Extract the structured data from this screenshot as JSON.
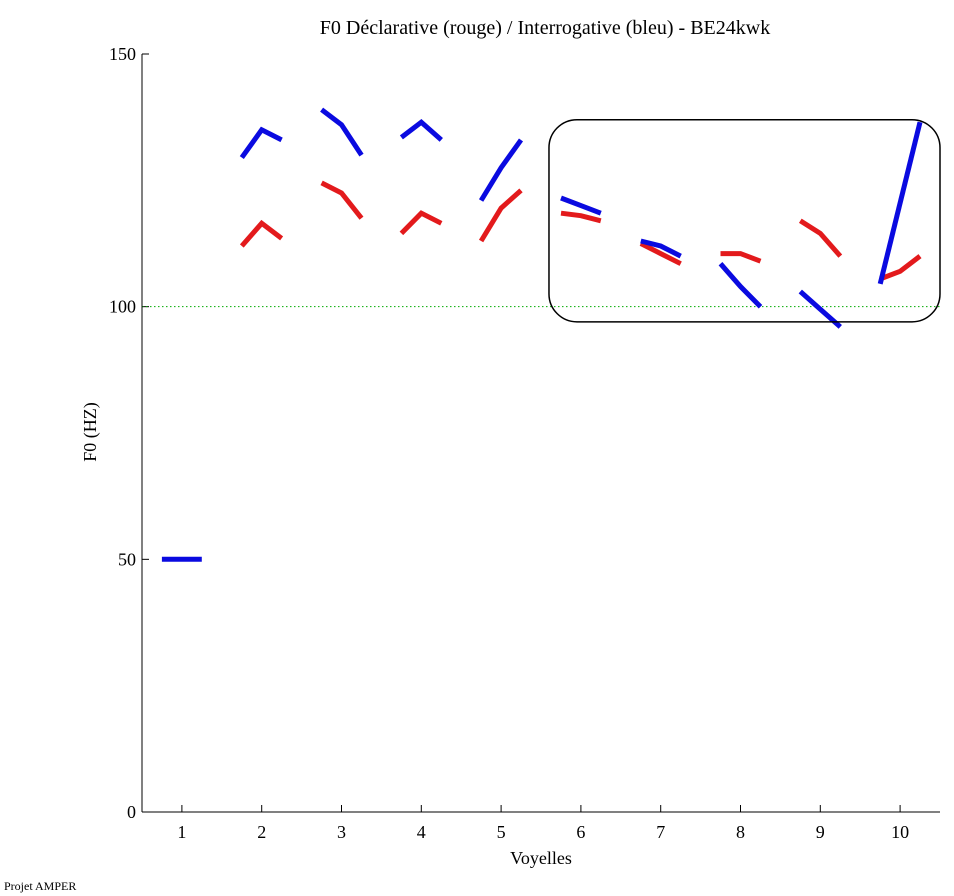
{
  "chart_data": {
    "type": "line",
    "title": "F0 Déclarative (rouge) / Interrogative (bleu) - BE24kwk",
    "xlabel": "Voyelles",
    "ylabel": "F0 (HZ)",
    "xlim": [
      0.5,
      10.5
    ],
    "ylim": [
      0,
      150
    ],
    "x_ticks": [
      1,
      2,
      3,
      4,
      5,
      6,
      7,
      8,
      9,
      10
    ],
    "y_ticks": [
      0,
      50,
      100,
      150
    ],
    "reference_line": {
      "y": 100,
      "color": "#00aa00",
      "style": "dotted"
    },
    "highlight_box": {
      "x_range": [
        5.6,
        10.5
      ],
      "y_range": [
        97,
        137
      ]
    },
    "series": [
      {
        "color": "#e31a1c",
        "segments": [
          {
            "vowel": 2,
            "x": [
              1.75,
              2.0,
              2.25
            ],
            "y": [
              112,
              116.5,
              113.5
            ]
          },
          {
            "vowel": 3,
            "x": [
              2.75,
              3.0,
              3.25
            ],
            "y": [
              124.5,
              122.5,
              117.5
            ]
          },
          {
            "vowel": 4,
            "x": [
              3.75,
              4.0,
              4.25
            ],
            "y": [
              114.5,
              118.5,
              116.5
            ]
          },
          {
            "vowel": 5,
            "x": [
              4.75,
              5.0,
              5.25
            ],
            "y": [
              113,
              119.5,
              123
            ]
          },
          {
            "vowel": 6,
            "x": [
              5.75,
              6.0,
              6.25
            ],
            "y": [
              118.5,
              118,
              117
            ]
          },
          {
            "vowel": 7,
            "x": [
              6.75,
              7.0,
              7.25
            ],
            "y": [
              112.5,
              110.5,
              108.5
            ]
          },
          {
            "vowel": 8,
            "x": [
              7.75,
              8.0,
              8.25
            ],
            "y": [
              110.5,
              110.5,
              109
            ]
          },
          {
            "vowel": 9,
            "x": [
              8.75,
              9.0,
              9.25
            ],
            "y": [
              117,
              114.5,
              110
            ]
          },
          {
            "vowel": 10,
            "x": [
              9.75,
              10.0,
              10.25
            ],
            "y": [
              105.5,
              107,
              110
            ]
          }
        ]
      },
      {
        "color": "#0a0ae0",
        "segments": [
          {
            "vowel": 1,
            "x": [
              0.75,
              1.25
            ],
            "y": [
              50,
              50
            ]
          },
          {
            "vowel": 2,
            "x": [
              1.75,
              2.0,
              2.25
            ],
            "y": [
              129.5,
              135,
              133
            ]
          },
          {
            "vowel": 3,
            "x": [
              2.75,
              3.0,
              3.25
            ],
            "y": [
              139,
              136,
              130
            ]
          },
          {
            "vowel": 4,
            "x": [
              3.75,
              4.0,
              4.25
            ],
            "y": [
              133.5,
              136.5,
              133
            ]
          },
          {
            "vowel": 5,
            "x": [
              4.75,
              5.0,
              5.25
            ],
            "y": [
              121,
              127.5,
              133
            ]
          },
          {
            "vowel": 6,
            "x": [
              5.75,
              6.0,
              6.25
            ],
            "y": [
              121.5,
              120,
              118.5
            ]
          },
          {
            "vowel": 7,
            "x": [
              6.75,
              7.0,
              7.25
            ],
            "y": [
              113,
              112,
              110
            ]
          },
          {
            "vowel": 8,
            "x": [
              7.75,
              8.0,
              8.25
            ],
            "y": [
              108.5,
              104,
              100
            ]
          },
          {
            "vowel": 9,
            "x": [
              8.75,
              9.0,
              9.25
            ],
            "y": [
              103,
              99.5,
              96
            ]
          },
          {
            "vowel": 10,
            "x": [
              9.75,
              10.25
            ],
            "y": [
              104.5,
              136.5
            ]
          }
        ]
      }
    ]
  },
  "footer": {
    "text": "Projet AMPER"
  }
}
